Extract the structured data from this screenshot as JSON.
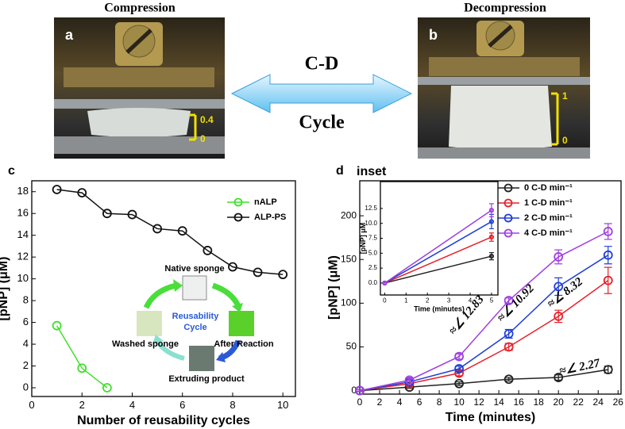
{
  "photos": {
    "a": {
      "title": "Compression",
      "label": "a",
      "scale_top": "0.4",
      "scale_bottom": "0"
    },
    "b": {
      "title": "Decompression",
      "label": "b",
      "scale_top": "1",
      "scale_bottom": "0"
    },
    "arrow_top": "C-D",
    "arrow_bottom": "Cycle"
  },
  "cycle_diagram": {
    "native": "Native sponge",
    "title": [
      "Reusability",
      "Cycle"
    ],
    "after": "After Reaction",
    "extruding": "Extruding product",
    "washed": "Washed sponge"
  },
  "chart_data": [
    {
      "type": "line",
      "panel": "c",
      "xlabel": "Number of reusability cycles",
      "ylabel": "[pNP] (μM)",
      "x": [
        1,
        2,
        3,
        4,
        5,
        6,
        7,
        8,
        9,
        10
      ],
      "series": [
        {
          "name": "nALP",
          "color": "#3fe02a",
          "values": [
            5.7,
            1.8,
            0,
            null,
            null,
            null,
            null,
            null,
            null,
            null
          ]
        },
        {
          "name": "ALP-PS",
          "color": "#111111",
          "values": [
            18.2,
            17.9,
            16.0,
            15.9,
            14.6,
            14.4,
            12.6,
            11.1,
            10.6,
            10.4
          ]
        }
      ],
      "xlim": [
        0,
        10.5
      ],
      "xticks": [
        0,
        2,
        4,
        6,
        8,
        10
      ],
      "ylim": [
        -0.8,
        19
      ],
      "yticks": [
        0,
        2,
        4,
        6,
        8,
        10,
        12,
        14,
        16,
        18
      ],
      "legend": "upper right"
    },
    {
      "type": "line",
      "panel": "d",
      "xlabel": "Time (minutes)",
      "ylabel": "[pNP] (μM)",
      "x": [
        0,
        5,
        10,
        15,
        20,
        25
      ],
      "series": [
        {
          "name": "0 C-D min⁻¹",
          "color": "#222222",
          "values": [
            0,
            4,
            8,
            13,
            15,
            24
          ],
          "errors": [
            1,
            1.5,
            2,
            2,
            3,
            4
          ]
        },
        {
          "name": "1 C-D min⁻¹",
          "color": "#e8202a",
          "values": [
            0,
            8,
            20,
            50,
            85,
            126
          ],
          "errors": [
            1,
            2,
            3,
            4,
            7,
            15
          ]
        },
        {
          "name": "2 C-D min⁻¹",
          "color": "#1f3fd6",
          "values": [
            0,
            10,
            25,
            65,
            119,
            155
          ],
          "errors": [
            1,
            2,
            3,
            5,
            10,
            10
          ]
        },
        {
          "name": "4 C-D min⁻¹",
          "color": "#a040e0",
          "values": [
            0,
            12,
            39,
            103,
            153,
            182
          ],
          "errors": [
            1,
            2,
            3,
            3,
            8,
            9
          ]
        }
      ],
      "annotations": [
        "≈∠ 12.83",
        "≈∠ 10.92",
        "≈∠ 8.32",
        "≈∠ 2.27"
      ],
      "xlim": [
        0,
        26.3
      ],
      "xticks": [
        0,
        2,
        4,
        6,
        8,
        10,
        12,
        14,
        16,
        18,
        20,
        22,
        24,
        26
      ],
      "ylim": [
        -4,
        240
      ],
      "yticks": [
        0,
        50,
        100,
        150,
        200
      ],
      "legend": "upper right"
    },
    {
      "type": "line",
      "panel": "inset",
      "xlabel": "Time (minutes)",
      "ylabel": "[pNP] μM",
      "x": [
        0,
        5
      ],
      "series": [
        {
          "name": "0 C-D",
          "color": "#222222",
          "values": [
            0,
            4.5
          ],
          "errors": [
            0,
            0.6
          ]
        },
        {
          "name": "1 C-D",
          "color": "#e8202a",
          "values": [
            0,
            7.7
          ],
          "errors": [
            0,
            0.7
          ]
        },
        {
          "name": "2 C-D",
          "color": "#1f3fd6",
          "values": [
            0,
            10.3
          ],
          "errors": [
            0,
            1.2
          ]
        },
        {
          "name": "4 C-D",
          "color": "#a040e0",
          "values": [
            0,
            12.2
          ],
          "errors": [
            0,
            1.1
          ]
        }
      ],
      "xlim": [
        -0.2,
        5.3
      ],
      "xticks": [
        0,
        1,
        2,
        3,
        4,
        5
      ],
      "ylim": [
        -2,
        17
      ],
      "yticks": [
        {
          "value": 0,
          "label": "0.0"
        },
        2.5,
        {
          "value": 5,
          "label": "5.0"
        },
        7.5,
        {
          "value": 10,
          "label": "10.0"
        },
        12.5
      ]
    }
  ]
}
